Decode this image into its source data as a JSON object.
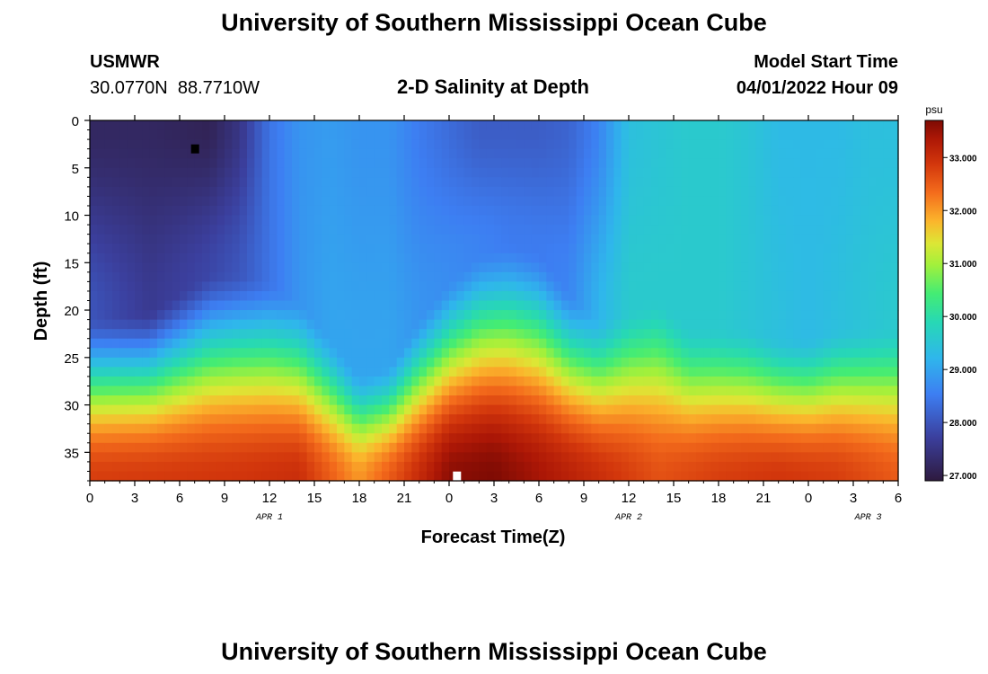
{
  "page": {
    "title": "University of Southern Mississippi Ocean Cube",
    "footer_title": "University of Southern Mississippi Ocean Cube"
  },
  "station": {
    "id": "USMWR",
    "coords": "30.0770N  88.7710W"
  },
  "model": {
    "label": "Model Start Time",
    "time": "04/01/2022 Hour 09"
  },
  "colors": {
    "missing_dark": "#000000",
    "missing_light": "#ffffff"
  },
  "chart_data": {
    "type": "heatmap",
    "title": "2-D Salinity at Depth",
    "xlabel": "Forecast Time(Z)",
    "ylabel": "Depth (ft)",
    "x_hours_range": [
      0,
      54
    ],
    "x_tick_hours": [
      0,
      3,
      6,
      9,
      12,
      15,
      18,
      21,
      24,
      27,
      30,
      33,
      36,
      39,
      42,
      45,
      48,
      51,
      54
    ],
    "x_tick_labels": [
      "0",
      "3",
      "6",
      "9",
      "12",
      "15",
      "18",
      "21",
      "0",
      "3",
      "6",
      "9",
      "12",
      "15",
      "18",
      "21",
      "0",
      "3",
      "6"
    ],
    "date_labels": [
      {
        "hour": 12,
        "text": "APR 1"
      },
      {
        "hour": 36,
        "text": "APR 2"
      },
      {
        "hour": 52,
        "text": "APR 3"
      }
    ],
    "y_range_ft": [
      0,
      38
    ],
    "y_ticks": [
      0,
      5,
      10,
      15,
      20,
      25,
      30,
      35
    ],
    "y_tick_labels": [
      "0",
      "5",
      "10",
      "15",
      "20",
      "25",
      "30",
      "35"
    ],
    "colorbar": {
      "unit": "psu",
      "range": [
        26.9,
        33.7
      ],
      "ticks": [
        27,
        28,
        29,
        30,
        31,
        32,
        33
      ],
      "tick_labels": [
        "27.000",
        "28.000",
        "29.000",
        "30.000",
        "31.000",
        "32.000",
        "33.000"
      ],
      "stops": [
        [
          0.0,
          "#2e1a3e"
        ],
        [
          0.12,
          "#3b3f9d"
        ],
        [
          0.24,
          "#3d7ef2"
        ],
        [
          0.34,
          "#2fb6ec"
        ],
        [
          0.44,
          "#27d8b5"
        ],
        [
          0.52,
          "#44ec74"
        ],
        [
          0.6,
          "#a3f03b"
        ],
        [
          0.66,
          "#dde635"
        ],
        [
          0.72,
          "#fbb52c"
        ],
        [
          0.8,
          "#f46c1c"
        ],
        [
          0.88,
          "#d2360c"
        ],
        [
          0.95,
          "#ac1706"
        ],
        [
          1.0,
          "#7e0b04"
        ]
      ]
    },
    "key_points": [
      {
        "hour": 0,
        "top_psu": 27.2,
        "mid_psu": 28.0,
        "h_ft": 24
      },
      {
        "hour": 4,
        "top_psu": 27.2,
        "mid_psu": 27.6,
        "h_ft": 23
      },
      {
        "hour": 8,
        "top_psu": 27.1,
        "mid_psu": 27.8,
        "h_ft": 19
      },
      {
        "hour": 10,
        "top_psu": 27.5,
        "mid_psu": 28.0,
        "h_ft": 19
      },
      {
        "hour": 12,
        "top_psu": 28.4,
        "mid_psu": 28.4,
        "h_ft": 20
      },
      {
        "hour": 14,
        "top_psu": 28.8,
        "mid_psu": 28.8,
        "h_ft": 22
      },
      {
        "hour": 16,
        "top_psu": 28.9,
        "mid_psu": 29.0,
        "h_ft": 26
      },
      {
        "hour": 18,
        "top_psu": 28.8,
        "mid_psu": 29.0,
        "h_ft": 30
      },
      {
        "hour": 20,
        "top_psu": 28.8,
        "mid_psu": 29.0,
        "h_ft": 29
      },
      {
        "hour": 22,
        "top_psu": 28.5,
        "mid_psu": 28.8,
        "h_ft": 24
      },
      {
        "hour": 24,
        "top_psu": 28.3,
        "mid_psu": 28.7,
        "h_ft": 20
      },
      {
        "hour": 26,
        "top_psu": 28.1,
        "mid_psu": 28.6,
        "h_ft": 17
      },
      {
        "hour": 28,
        "top_psu": 28.1,
        "mid_psu": 28.5,
        "h_ft": 16
      },
      {
        "hour": 30,
        "top_psu": 28.1,
        "mid_psu": 28.5,
        "h_ft": 17
      },
      {
        "hour": 32,
        "top_psu": 28.2,
        "mid_psu": 28.6,
        "h_ft": 21
      },
      {
        "hour": 34,
        "top_psu": 28.6,
        "mid_psu": 29.2,
        "h_ft": 24
      },
      {
        "hour": 36,
        "top_psu": 29.4,
        "mid_psu": 29.6,
        "h_ft": 23
      },
      {
        "hour": 38,
        "top_psu": 29.5,
        "mid_psu": 29.6,
        "h_ft": 22
      },
      {
        "hour": 40,
        "top_psu": 29.6,
        "mid_psu": 29.6,
        "h_ft": 25
      },
      {
        "hour": 42,
        "top_psu": 29.6,
        "mid_psu": 29.6,
        "h_ft": 25
      },
      {
        "hour": 44,
        "top_psu": 29.5,
        "mid_psu": 29.5,
        "h_ft": 25
      },
      {
        "hour": 46,
        "top_psu": 29.3,
        "mid_psu": 29.4,
        "h_ft": 26
      },
      {
        "hour": 48,
        "top_psu": 29.3,
        "mid_psu": 29.3,
        "h_ft": 26
      },
      {
        "hour": 50,
        "top_psu": 29.3,
        "mid_psu": 29.4,
        "h_ft": 25
      },
      {
        "hour": 52,
        "top_psu": 29.4,
        "mid_psu": 29.5,
        "h_ft": 25
      },
      {
        "hour": 54,
        "top_psu": 29.4,
        "mid_psu": 29.6,
        "h_ft": 25
      }
    ],
    "bottom_psu": [
      [
        0,
        32.8
      ],
      [
        10,
        32.9
      ],
      [
        14,
        33.0
      ],
      [
        18,
        32.0
      ],
      [
        20,
        32.5
      ],
      [
        24,
        33.6
      ],
      [
        27,
        33.7
      ],
      [
        30,
        33.4
      ],
      [
        34,
        33.0
      ],
      [
        38,
        32.6
      ],
      [
        42,
        32.8
      ],
      [
        46,
        32.9
      ],
      [
        50,
        32.8
      ],
      [
        54,
        32.5
      ]
    ],
    "missing_cells": [
      {
        "hour": 7,
        "depth_ft": 3,
        "shade": "dark"
      },
      {
        "hour": 24.5,
        "depth_ft": 37.5,
        "shade": "light"
      }
    ]
  }
}
